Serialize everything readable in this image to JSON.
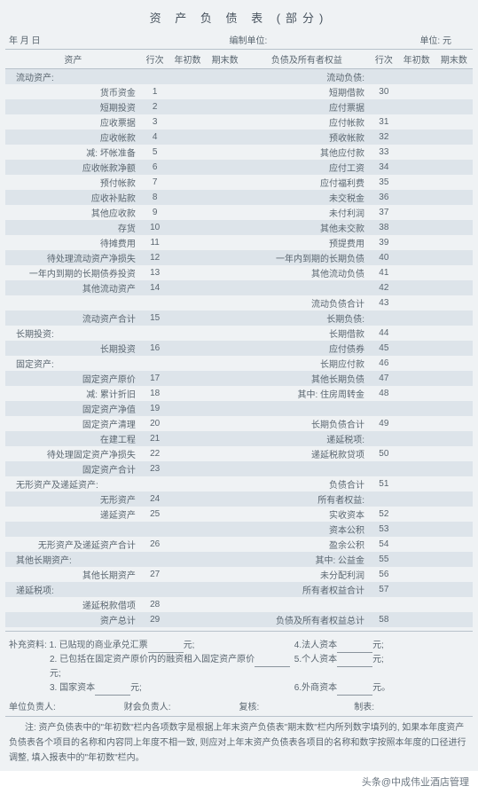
{
  "title": "资 产 负 债 表 (部分)",
  "meta": {
    "date": "年   月   日",
    "prep": "编制单位:",
    "unit": "单位:        元"
  },
  "headers": {
    "asset": "资产",
    "row": "行次",
    "begin": "年初数",
    "end": "期末数",
    "liab": "负债及所有者权益",
    "row2": "行次",
    "begin2": "年初数",
    "end2": "期末数"
  },
  "rows": [
    {
      "a": "流动资产:",
      "ar": "",
      "al": true,
      "l": "流动负债:",
      "lr": ""
    },
    {
      "a": "货币资金",
      "ar": "1",
      "l": "短期借款",
      "lr": "30"
    },
    {
      "a": "短期投资",
      "ar": "2",
      "l": "应付票据",
      "lr": ""
    },
    {
      "a": "应收票据",
      "ar": "3",
      "l": "应付帐款",
      "lr": "31"
    },
    {
      "a": "应收帐款",
      "ar": "4",
      "l": "预收帐款",
      "lr": "32"
    },
    {
      "a": "减: 坏帐准备",
      "ar": "5",
      "l": "其他应付款",
      "lr": "33"
    },
    {
      "a": "应收帐款净额",
      "ar": "6",
      "l": "应付工资",
      "lr": "34"
    },
    {
      "a": "预付帐款",
      "ar": "7",
      "l": "应付福利费",
      "lr": "35"
    },
    {
      "a": "应收补贴款",
      "ar": "8",
      "l": "未交税金",
      "lr": "36"
    },
    {
      "a": "其他应收款",
      "ar": "9",
      "l": "未付利润",
      "lr": "37"
    },
    {
      "a": "存货",
      "ar": "10",
      "l": "其他未交款",
      "lr": "38"
    },
    {
      "a": "待摊费用",
      "ar": "11",
      "l": "预提费用",
      "lr": "39"
    },
    {
      "a": "待处理流动资产净损失",
      "ar": "12",
      "l": "一年内到期的长期负债",
      "lr": "40"
    },
    {
      "a": "一年内到期的长期债券投资",
      "ar": "13",
      "l": "其他流动负债",
      "lr": "41"
    },
    {
      "a": "其他流动资产",
      "ar": "14",
      "l": "",
      "lr": "42"
    },
    {
      "a": "",
      "ar": "",
      "l": "流动负债合计",
      "lr": "43"
    },
    {
      "a": "流动资产合计",
      "ar": "15",
      "l": "长期负债:",
      "lr": ""
    },
    {
      "a": "长期投资:",
      "ar": "",
      "al": true,
      "l": "长期借款",
      "lr": "44"
    },
    {
      "a": "长期投资",
      "ar": "16",
      "l": "应付债券",
      "lr": "45"
    },
    {
      "a": "固定资产:",
      "ar": "",
      "al": true,
      "l": "长期应付款",
      "lr": "46"
    },
    {
      "a": "固定资产原价",
      "ar": "17",
      "l": "其他长期负债",
      "lr": "47"
    },
    {
      "a": "减: 累计折旧",
      "ar": "18",
      "l": "其中: 住房周转金",
      "lr": "48"
    },
    {
      "a": "固定资产净值",
      "ar": "19",
      "l": "",
      "lr": ""
    },
    {
      "a": "固定资产清理",
      "ar": "20",
      "l": "长期负债合计",
      "lr": "49"
    },
    {
      "a": "在建工程",
      "ar": "21",
      "l": "递延税项:",
      "lr": ""
    },
    {
      "a": "待处理固定资产净损失",
      "ar": "22",
      "l": "递延税款贷项",
      "lr": "50"
    },
    {
      "a": "固定资产合计",
      "ar": "23",
      "l": "",
      "lr": ""
    },
    {
      "a": "无形资产及递延资产:",
      "ar": "",
      "al": true,
      "l": "负债合计",
      "lr": "51"
    },
    {
      "a": "无形资产",
      "ar": "24",
      "l": "所有者权益:",
      "lr": ""
    },
    {
      "a": "递延资产",
      "ar": "25",
      "l": "实收资本",
      "lr": "52"
    },
    {
      "a": "",
      "ar": "",
      "l": "资本公积",
      "lr": "53"
    },
    {
      "a": "无形资产及递延资产合计",
      "ar": "26",
      "l": "盈余公积",
      "lr": "54"
    },
    {
      "a": "其他长期资产:",
      "ar": "",
      "al": true,
      "l": "其中: 公益金",
      "lr": "55"
    },
    {
      "a": "其他长期资产",
      "ar": "27",
      "l": "未分配利润",
      "lr": "56"
    },
    {
      "a": "递延税项:",
      "ar": "",
      "al": true,
      "l": "所有者权益合计",
      "lr": "57"
    },
    {
      "a": "递延税款借项",
      "ar": "28",
      "l": "",
      "lr": ""
    },
    {
      "a": "资产总计",
      "ar": "29",
      "l": "负债及所有者权益总计",
      "lr": "58"
    }
  ],
  "supp": {
    "lead": "补充资料: 1. 已贴现的商业承兑汇票",
    "l2": "2. 已包括在固定资产原价内的融资租入固定资产原价",
    "l3": "3. 国家资本",
    "r1": "4.法人资本",
    "r2": "5.个人资本",
    "r3": "6.外商资本",
    "yuan": "元;",
    "yuan2": "元。"
  },
  "resp": {
    "a": "单位负责人:",
    "b": "财会负责人:",
    "c": "复核:",
    "d": "制表:"
  },
  "notes": "注: 资产负债表中的\"年初数\"栏内各项数字是根据上年末资产负债表\"期末数\"栏内所列数字填列的, 如果本年度资产负债表各个项目的名称和内容同上年度不相一致, 则应对上年末资产负债表各项目的名称和数字按照本年度的口径进行调整, 填入报表中的\"年初数\"栏内。",
  "footer": "头条@中成伟业酒店管理",
  "colors": {
    "band1": "#dde4ea",
    "band2": "#eff2f4",
    "border": "#b8c2cb",
    "text": "#5a6670"
  }
}
